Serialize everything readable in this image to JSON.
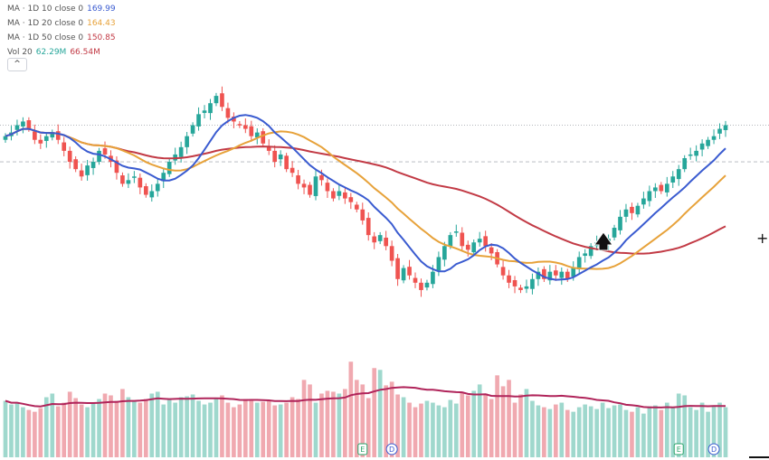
{
  "legend": {
    "ma10": {
      "label": "MA · 1D 10 close 0",
      "value": "169.99",
      "color": "#3a5bd0"
    },
    "ma20": {
      "label": "MA · 1D 20 close 0",
      "value": "164.43",
      "color": "#e7a23a"
    },
    "ma50": {
      "label": "MA · 1D 50 close 0",
      "value": "150.85",
      "color": "#c23a45"
    },
    "vol": {
      "label": "Vol 20",
      "value1": "62.29M",
      "value2": "66.54M",
      "color1": "#26a69a",
      "color2": "#c23a45"
    },
    "collapse_label": "^"
  },
  "markers": [
    {
      "letter": "E",
      "type": "earnings"
    },
    {
      "letter": "D",
      "type": "dividend"
    },
    {
      "letter": "E",
      "type": "earnings"
    },
    {
      "letter": "D",
      "type": "dividend"
    }
  ],
  "chart_data": {
    "type": "candlestick",
    "up_color": "#26a69a",
    "down_color": "#ef5350",
    "ma_colors": {
      "ma10": "#3a5bd0",
      "ma20": "#e7a23a",
      "ma50": "#c23a45"
    },
    "last_price": 170,
    "reference_price": 160,
    "closes": [
      167,
      168,
      170,
      171,
      169,
      166,
      165,
      167,
      168,
      166,
      163,
      160,
      158,
      156,
      159,
      160,
      163,
      162,
      160,
      157,
      154,
      155,
      156,
      153,
      151,
      152,
      154,
      157,
      160,
      162,
      164,
      167,
      170,
      173,
      174,
      176,
      178,
      175,
      172,
      171,
      170,
      169,
      167,
      168,
      165,
      163,
      160,
      162,
      158,
      157,
      154,
      153,
      151,
      156,
      155,
      152,
      150,
      152,
      150,
      149,
      147,
      144,
      140,
      138,
      140,
      137,
      133,
      128,
      131,
      129,
      127,
      125,
      127,
      130,
      134,
      137,
      140,
      141,
      137,
      136,
      138,
      139,
      137,
      135,
      132,
      129,
      127,
      126,
      125,
      126,
      128,
      130,
      128,
      130,
      129,
      130,
      128,
      131,
      134,
      135,
      137,
      138,
      138,
      139,
      142,
      145,
      147,
      146,
      148,
      150,
      152,
      153,
      152,
      154,
      156,
      158,
      161,
      162,
      163,
      165,
      166,
      167,
      169,
      170
    ],
    "volumes": [
      62,
      58,
      60,
      55,
      52,
      50,
      54,
      66,
      70,
      56,
      60,
      72,
      65,
      58,
      55,
      60,
      64,
      70,
      68,
      62,
      75,
      66,
      61,
      60,
      64,
      70,
      72,
      58,
      63,
      60,
      66,
      67,
      69,
      62,
      58,
      60,
      64,
      68,
      60,
      55,
      58,
      64,
      62,
      60,
      61,
      63,
      57,
      58,
      60,
      66,
      64,
      85,
      80,
      60,
      70,
      73,
      72,
      70,
      75,
      105,
      85,
      80,
      65,
      98,
      96,
      79,
      83,
      69,
      66,
      60,
      55,
      59,
      62,
      60,
      57,
      55,
      63,
      59,
      72,
      68,
      73,
      80,
      70,
      64,
      90,
      78,
      85,
      60,
      69,
      75,
      62,
      57,
      55,
      53,
      58,
      60,
      52,
      50,
      55,
      58,
      56,
      53,
      60,
      54,
      57,
      58,
      52,
      50,
      55,
      48,
      56,
      57,
      52,
      60,
      55,
      70,
      68,
      55,
      52,
      60,
      50,
      57,
      60,
      55
    ],
    "events": [
      {
        "index": 61,
        "letter": "E"
      },
      {
        "index": 66,
        "letter": "D"
      },
      {
        "index": 115,
        "letter": "E"
      },
      {
        "index": 121,
        "letter": "D"
      }
    ]
  }
}
